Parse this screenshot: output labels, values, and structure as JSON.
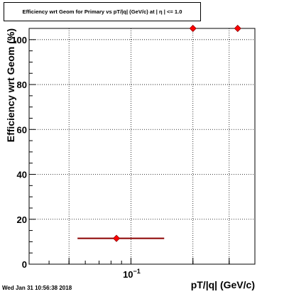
{
  "chart_data": {
    "type": "scatter",
    "title": "Efficiency wrt Geom for Primary vs pT/|q| (GeV/c) at | η | <= 1.0",
    "xlabel": "pT/|q| (GeV/c)",
    "ylabel": "Efficiency wrt Geom (%)",
    "xscale": "log",
    "xlim": [
      0.032,
      0.4
    ],
    "ylim": [
      0,
      105
    ],
    "x_tick_label": "10",
    "x_tick_label_exponent": "−1",
    "y_ticks": [
      0,
      20,
      40,
      60,
      80,
      100
    ],
    "grid": true,
    "marker_color": "#ff0000",
    "errorbar_color": "#8b0000",
    "points": [
      {
        "x": 0.085,
        "y": 11.5,
        "xerr_low": 0.055,
        "xerr_high": 0.145
      },
      {
        "x": 0.2,
        "y": 105
      },
      {
        "x": 0.33,
        "y": 105
      }
    ]
  },
  "footer": {
    "timestamp": "Wed Jan 31 10:56:38 2018"
  }
}
